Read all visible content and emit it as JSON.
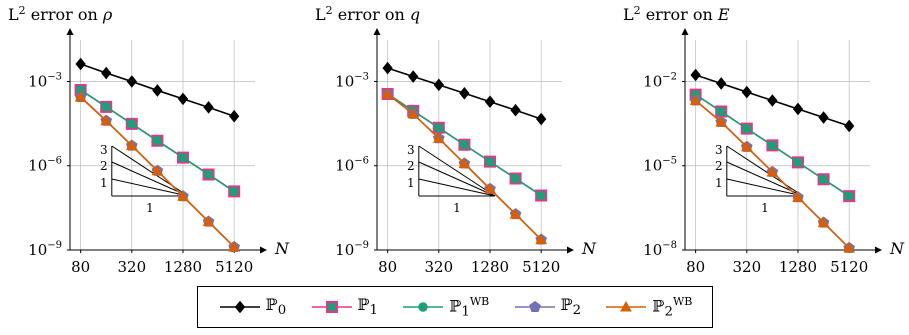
{
  "chart_data": [
    {
      "type": "line",
      "title": "L² error on ρ",
      "title_parts": {
        "main": "L",
        "sup": "2",
        "rest": " error on ",
        "var": "ρ"
      },
      "xlabel": "N",
      "ylabel": "",
      "x_scale": "log",
      "y_scale": "log",
      "x": [
        80,
        160,
        320,
        640,
        1280,
        2560,
        5120
      ],
      "x_tick_labels": [
        "80",
        "320",
        "1280",
        "5120"
      ],
      "x_tick_values": [
        80,
        320,
        1280,
        5120
      ],
      "y_tick_labels": [
        {
          "base": "10",
          "exp": "−3"
        },
        {
          "base": "10",
          "exp": "−6"
        },
        {
          "base": "10",
          "exp": "−9"
        }
      ],
      "y_tick_values": [
        0.001,
        1e-06,
        1e-09
      ],
      "ylim": [
        1e-09,
        0.03
      ],
      "xlim": [
        60,
        9000
      ],
      "grid": true,
      "series": [
        {
          "name": "P0",
          "values": [
            0.0042,
            0.002,
            0.001,
            0.00048,
            0.00024,
            0.00012,
            5.8e-05
          ]
        },
        {
          "name": "P1",
          "values": [
            0.0005,
            0.000125,
            3.1e-05,
            7.8e-06,
            1.95e-06,
            4.9e-07,
            1.22e-07
          ]
        },
        {
          "name": "P1WB",
          "values": [
            0.0005,
            0.000125,
            3.1e-05,
            7.8e-06,
            1.95e-06,
            4.9e-07,
            1.22e-07
          ]
        },
        {
          "name": "P2",
          "values": [
            0.00028,
            4e-05,
            5.2e-06,
            6.6e-07,
            8.2e-08,
            1.02e-08,
            1.28e-09
          ]
        },
        {
          "name": "P2WB",
          "values": [
            0.00028,
            4e-05,
            5.2e-06,
            6.6e-07,
            8.2e-08,
            1.02e-08,
            1.28e-09
          ]
        }
      ],
      "slope_labels": [
        "3",
        "2",
        "1",
        "1"
      ]
    },
    {
      "type": "line",
      "title": "L² error on q",
      "title_parts": {
        "main": "L",
        "sup": "2",
        "rest": " error on ",
        "var": "q"
      },
      "xlabel": "N",
      "ylabel": "",
      "x_scale": "log",
      "y_scale": "log",
      "x": [
        80,
        160,
        320,
        640,
        1280,
        2560,
        5120
      ],
      "x_tick_labels": [
        "80",
        "320",
        "1280",
        "5120"
      ],
      "x_tick_values": [
        80,
        320,
        1280,
        5120
      ],
      "y_tick_labels": [
        {
          "base": "10",
          "exp": "−3"
        },
        {
          "base": "10",
          "exp": "−6"
        },
        {
          "base": "10",
          "exp": "−9"
        }
      ],
      "y_tick_values": [
        0.001,
        1e-06,
        1e-09
      ],
      "ylim": [
        1e-09,
        0.03
      ],
      "xlim": [
        60,
        9000
      ],
      "grid": true,
      "series": [
        {
          "name": "P0",
          "values": [
            0.003,
            0.0015,
            0.00076,
            0.00038,
            0.00019,
            9.5e-05,
            4.6e-05
          ]
        },
        {
          "name": "P1",
          "values": [
            0.00036,
            9e-05,
            2.25e-05,
            5.6e-06,
            1.4e-06,
            3.5e-07,
            8.75e-08
          ]
        },
        {
          "name": "P1WB",
          "values": [
            0.00036,
            9e-05,
            2.25e-05,
            5.6e-06,
            1.4e-06,
            3.5e-07,
            8.75e-08
          ]
        },
        {
          "name": "P2",
          "values": [
            0.00036,
            7e-05,
            9.5e-06,
            1.2e-06,
            1.5e-07,
            1.88e-08,
            2.35e-09
          ]
        },
        {
          "name": "P2WB",
          "values": [
            0.00036,
            7e-05,
            9.5e-06,
            1.2e-06,
            1.5e-07,
            1.88e-08,
            2.35e-09
          ]
        }
      ],
      "slope_labels": [
        "3",
        "2",
        "1",
        "1"
      ]
    },
    {
      "type": "line",
      "title": "L² error on E",
      "title_parts": {
        "main": "L",
        "sup": "2",
        "rest": " error on ",
        "var": "E"
      },
      "xlabel": "N",
      "ylabel": "",
      "x_scale": "log",
      "y_scale": "log",
      "x": [
        80,
        160,
        320,
        640,
        1280,
        2560,
        5120
      ],
      "x_tick_labels": [
        "80",
        "320",
        "1280",
        "5120"
      ],
      "x_tick_values": [
        80,
        320,
        1280,
        5120
      ],
      "y_tick_labels": [
        {
          "base": "10",
          "exp": "−2"
        },
        {
          "base": "10",
          "exp": "−5"
        },
        {
          "base": "10",
          "exp": "−8"
        }
      ],
      "y_tick_values": [
        0.01,
        1e-05,
        1e-08
      ],
      "ylim": [
        1e-08,
        0.3
      ],
      "xlim": [
        60,
        9000
      ],
      "grid": true,
      "series": [
        {
          "name": "P0",
          "values": [
            0.017,
            0.0085,
            0.0042,
            0.0021,
            0.00105,
            0.00052,
            0.00026
          ]
        },
        {
          "name": "P1",
          "values": [
            0.0034,
            0.00085,
            0.00021,
            5.3e-05,
            1.32e-05,
            3.3e-06,
            8.3e-07
          ]
        },
        {
          "name": "P1WB",
          "values": [
            0.0034,
            0.00085,
            0.00021,
            5.3e-05,
            1.32e-05,
            3.3e-06,
            8.3e-07
          ]
        },
        {
          "name": "P2",
          "values": [
            0.0021,
            0.00036,
            4.7e-05,
            6e-06,
            7.5e-07,
            9.4e-08,
            1.18e-08
          ]
        },
        {
          "name": "P2WB",
          "values": [
            0.0021,
            0.00036,
            4.7e-05,
            6e-06,
            7.5e-07,
            9.4e-08,
            1.18e-08
          ]
        }
      ],
      "slope_labels": [
        "3",
        "2",
        "1",
        "1"
      ]
    }
  ],
  "legend": [
    {
      "key": "P0",
      "label": "ℙ",
      "sub": "0",
      "sup": "",
      "color": "#000000",
      "marker": "diamond"
    },
    {
      "key": "P1",
      "label": "ℙ",
      "sub": "1",
      "sup": "",
      "color": "#e8348c",
      "marker": "square"
    },
    {
      "key": "P1WB",
      "label": "ℙ",
      "sub": "1",
      "sup": "WB",
      "color": "#1f9e77",
      "marker": "circle"
    },
    {
      "key": "P2",
      "label": "ℙ",
      "sub": "2",
      "sup": "",
      "color": "#7570b3",
      "marker": "pentagon"
    },
    {
      "key": "P2WB",
      "label": "ℙ",
      "sub": "2",
      "sup": "WB",
      "color": "#d95f02",
      "marker": "triangle"
    }
  ]
}
